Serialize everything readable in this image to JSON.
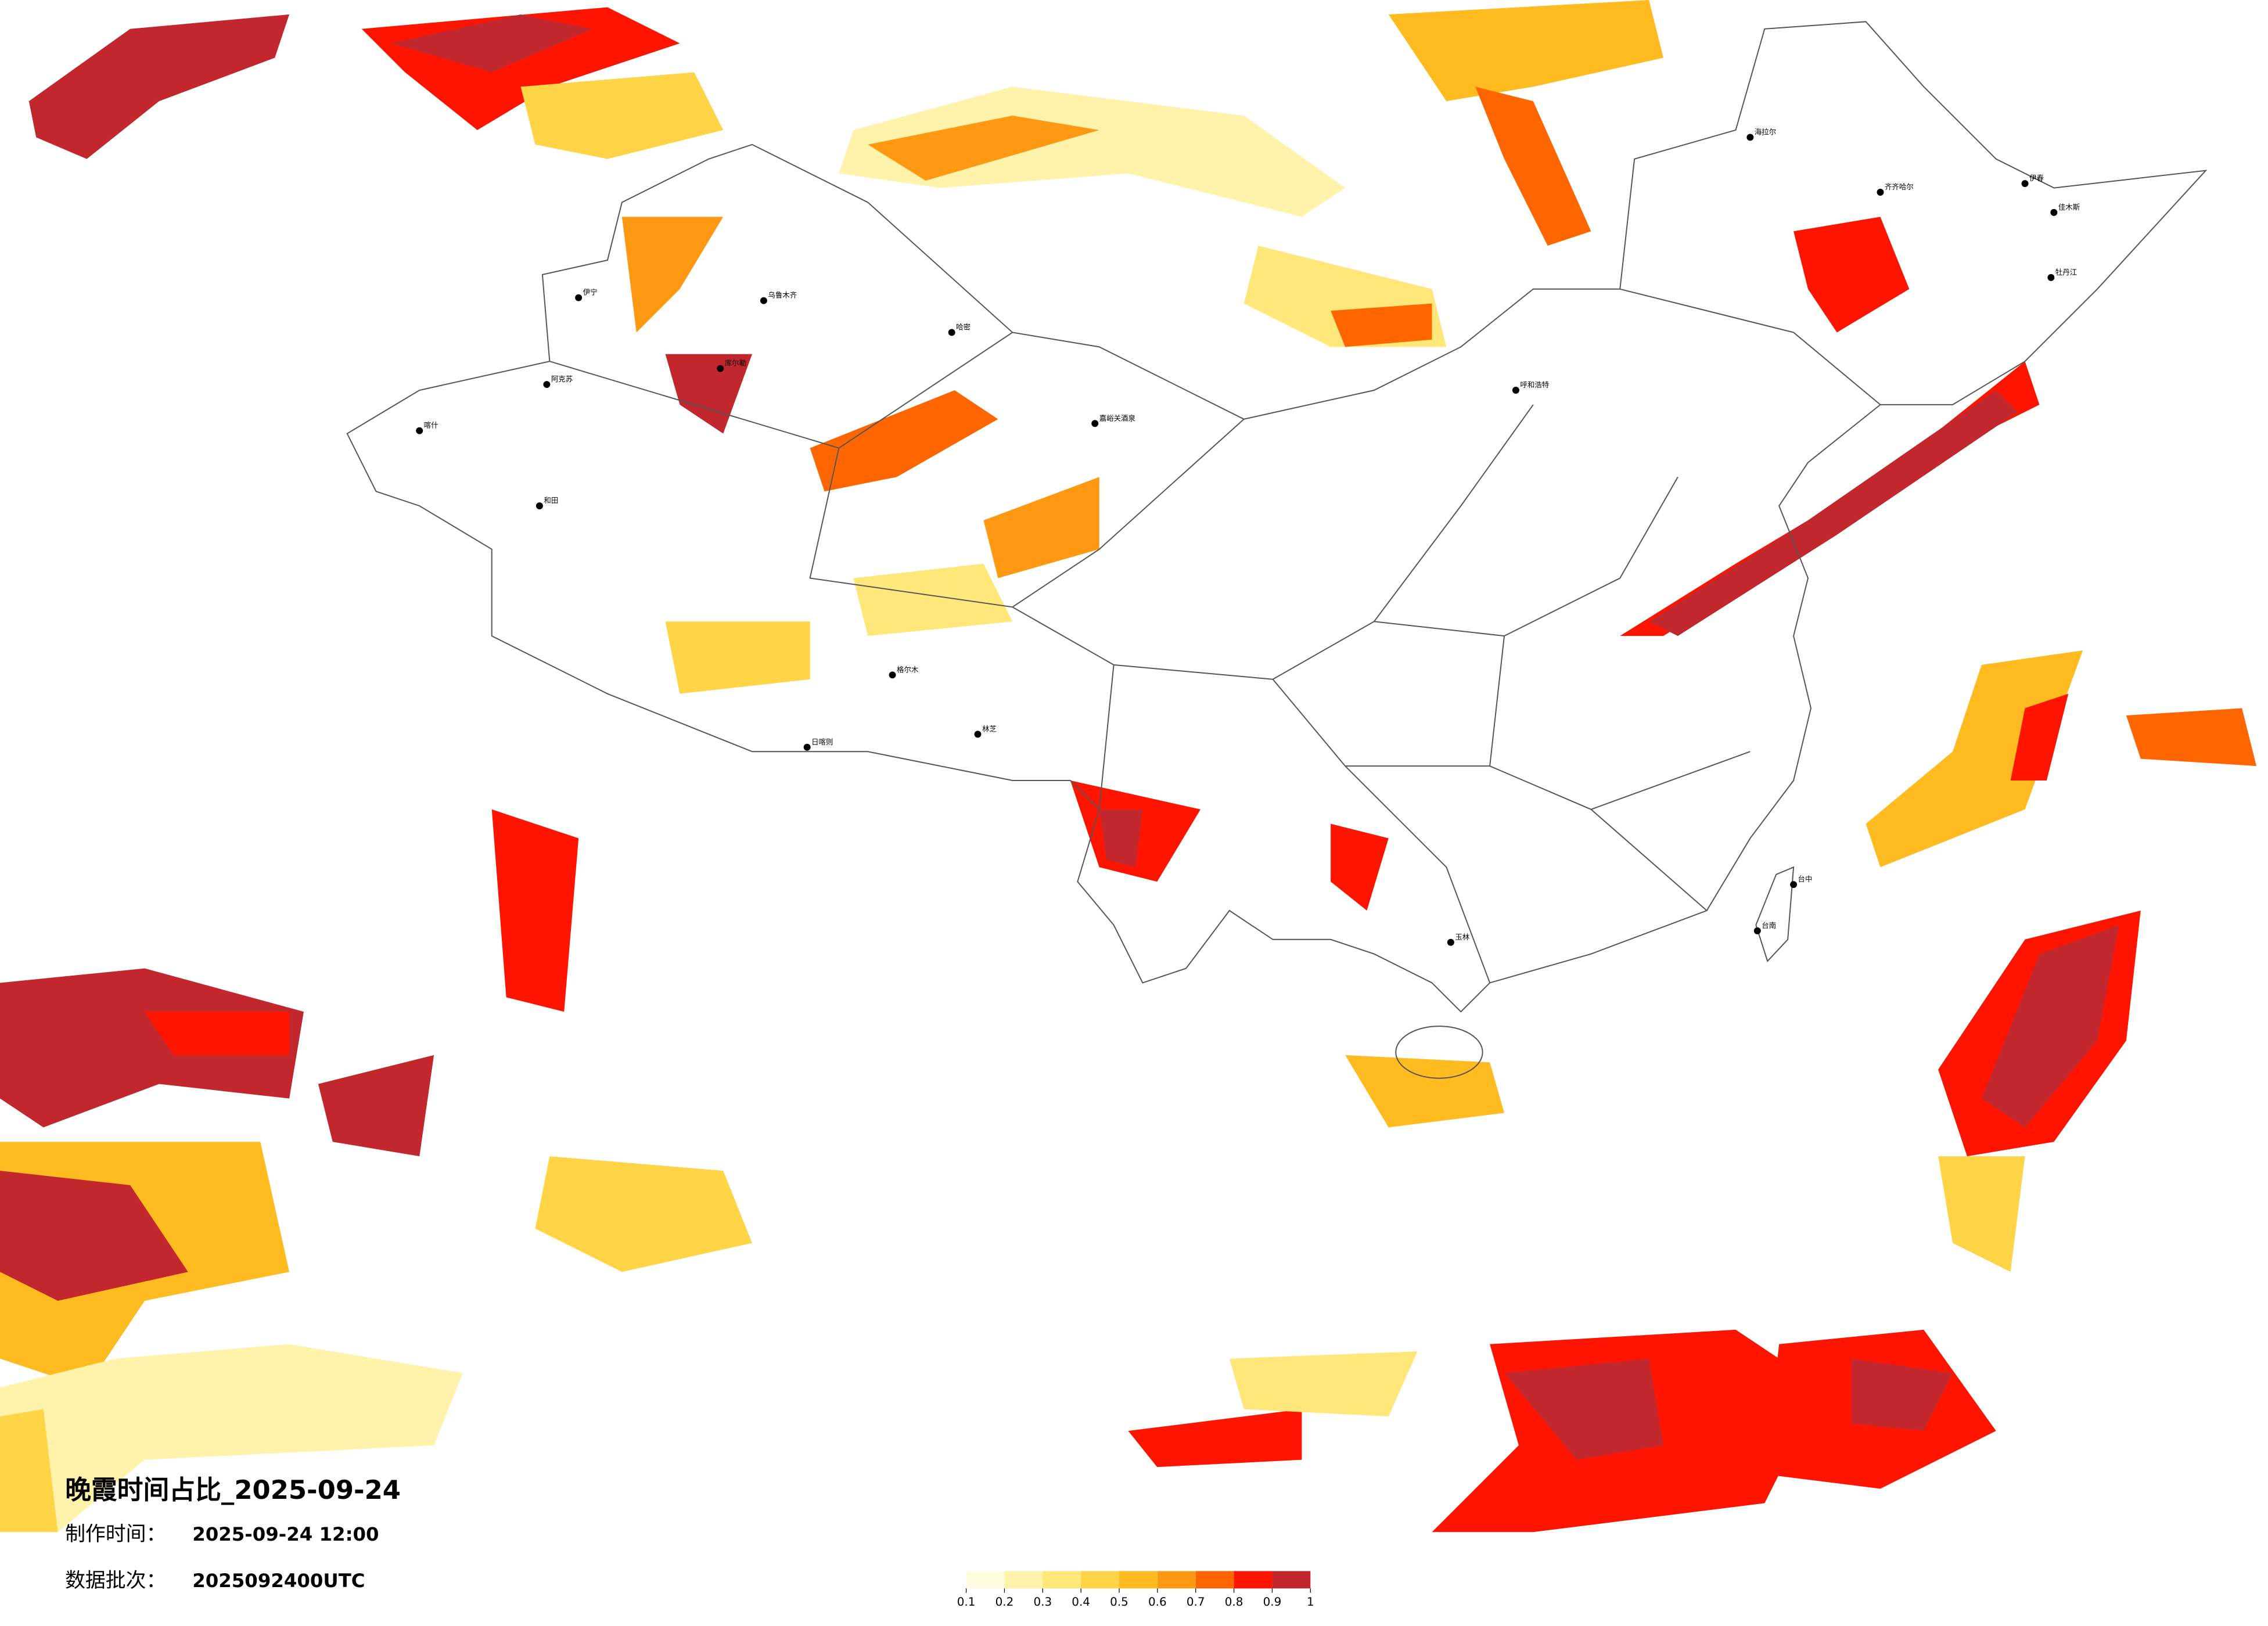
{
  "title": "晚霞时间占比_2025-09-24",
  "made": {
    "label": "制作时间：",
    "value": "2025-09-24 12:00"
  },
  "batch": {
    "label": "数据批次：",
    "value": "2025092400UTC"
  },
  "legend": {
    "colors": [
      "#fffbe0",
      "#fff3ac",
      "#ffe779",
      "#ffd447",
      "#ffbb1f",
      "#ff9812",
      "#ff6600",
      "#ff1400",
      "#c1272d"
    ],
    "ticks": [
      0.1,
      0.2,
      0.3,
      0.4,
      0.5,
      0.6,
      0.7,
      0.8,
      0.9,
      1
    ]
  },
  "cities": [
    "喀什",
    "阿克苏",
    "和田",
    "伊宁",
    "库尔勒",
    "乌鲁木齐",
    "哈密",
    "格尔木",
    "日喀则",
    "林芝",
    "嘉峪关酒泉",
    "海拉尔",
    "齐齐哈尔",
    "伊春",
    "佳木斯",
    "牡丹江",
    "呼和浩特",
    "玉林",
    "台中",
    "台南"
  ]
}
